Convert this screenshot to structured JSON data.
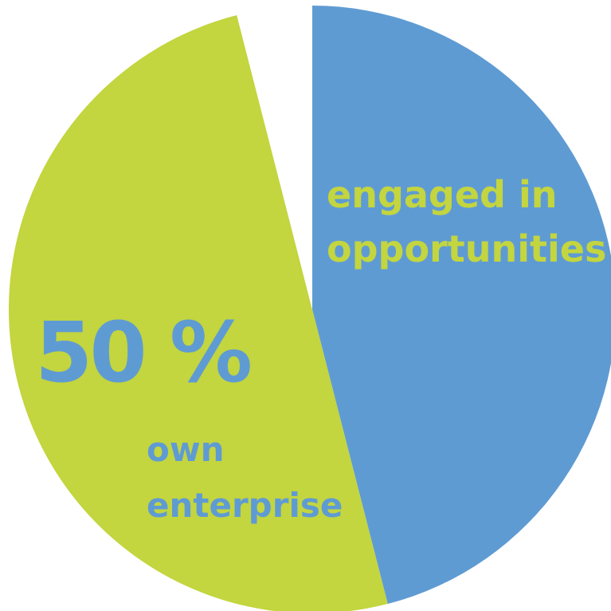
{
  "chart_data": {
    "type": "pie",
    "slices": [
      {
        "label": "engaged in opportunities",
        "value": 46,
        "color": "#5f9bd3"
      },
      {
        "label": "own enterprise",
        "value": 50,
        "color": "#c3d53f"
      },
      {
        "label": "",
        "value": 4,
        "color": "#ffffff"
      }
    ],
    "annotations": {
      "percent": "50 %",
      "own_line1": "own",
      "own_line2": "enterprise",
      "engaged_line1": "engaged in",
      "engaged_line2": "opportunities"
    },
    "title": ""
  },
  "colors": {
    "blue": "#5f9bd3",
    "green": "#c3d53f",
    "background": "#ffffff"
  }
}
